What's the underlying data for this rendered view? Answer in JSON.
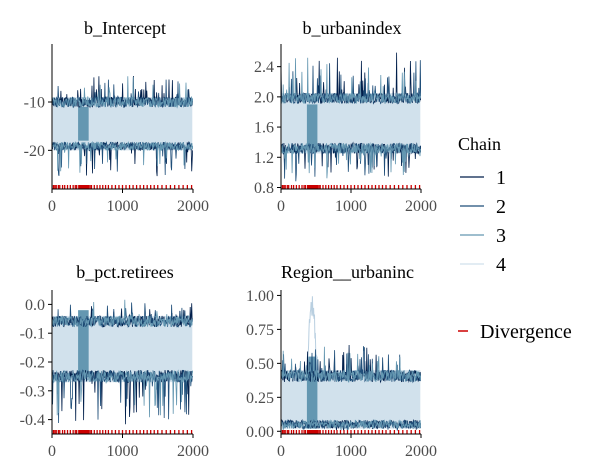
{
  "chart_data": [
    {
      "type": "line",
      "title": "b_Intercept",
      "xlim": [
        0,
        2000
      ],
      "ylim": [
        -28,
        2
      ],
      "x_ticks": [
        0,
        1000,
        2000
      ],
      "x_tick_labels": [
        "0",
        "1000",
        "2000"
      ],
      "y_ticks": [
        -10,
        -20
      ],
      "y_tick_labels": [
        "-10",
        "-20"
      ],
      "band": {
        "center": -15,
        "low": -20,
        "high": -9,
        "spike_low": -26,
        "spike_high": -4
      },
      "stuck_segment": {
        "x": [
          370,
          520
        ],
        "low": -18,
        "high": -11
      }
    },
    {
      "type": "line",
      "title": "b_urbanindex",
      "xlim": [
        0,
        2000
      ],
      "ylim": [
        0.78,
        2.7
      ],
      "x_ticks": [
        0,
        1000,
        2000
      ],
      "x_tick_labels": [
        "0",
        "1000",
        "2000"
      ],
      "y_ticks": [
        2.4,
        2.0,
        1.6,
        1.2,
        0.8
      ],
      "y_tick_labels": [
        "2.4",
        "2.0",
        "1.6",
        "1.2",
        "0.8"
      ],
      "band": {
        "center": 1.65,
        "low": 1.25,
        "high": 2.05,
        "spike_low": 0.85,
        "spike_high": 2.6
      },
      "stuck_segment": {
        "x": [
          370,
          520
        ],
        "low": 1.3,
        "high": 1.9
      }
    },
    {
      "type": "line",
      "title": "b_pct.retirees",
      "xlim": [
        0,
        2000
      ],
      "ylim": [
        -0.45,
        0.05
      ],
      "x_ticks": [
        0,
        1000,
        2000
      ],
      "x_tick_labels": [
        "0",
        "1000",
        "2000"
      ],
      "y_ticks": [
        0.0,
        -0.1,
        -0.2,
        -0.3,
        -0.4
      ],
      "y_tick_labels": [
        "0.0",
        "-0.1",
        "-0.2",
        "-0.3",
        "-0.4"
      ],
      "band": {
        "center": -0.15,
        "low": -0.27,
        "high": -0.04,
        "spike_low": -0.42,
        "spike_high": 0.02
      },
      "stuck_segment": {
        "x": [
          370,
          520
        ],
        "low": -0.25,
        "high": -0.02
      }
    },
    {
      "type": "line",
      "title": "Region__urbaninc",
      "xlim": [
        0,
        2000
      ],
      "ylim": [
        -0.02,
        1.04
      ],
      "x_ticks": [
        0,
        1000,
        2000
      ],
      "x_tick_labels": [
        "0",
        "1000",
        "2000"
      ],
      "y_ticks": [
        1.0,
        0.75,
        0.5,
        0.25,
        0.0
      ],
      "y_tick_labels": [
        "1.00",
        "0.75",
        "0.50",
        "0.25",
        "0.00"
      ],
      "band": {
        "center": 0.2,
        "low": 0.02,
        "high": 0.45,
        "spike_low": 0.0,
        "spike_high": 0.65
      },
      "stuck_segment": {
        "x": [
          370,
          520
        ],
        "low": 0.02,
        "high": 0.55
      },
      "excursion": {
        "x": [
          370,
          520
        ],
        "peak": 1.0
      }
    }
  ],
  "divergence_x": [
    20,
    40,
    60,
    90,
    110,
    150,
    180,
    220,
    260,
    300,
    330,
    350,
    380,
    390,
    400,
    410,
    420,
    430,
    440,
    450,
    460,
    470,
    480,
    490,
    500,
    510,
    520,
    540,
    560,
    600,
    640,
    680,
    720,
    760,
    800,
    850,
    900,
    950,
    1000,
    1050,
    1100,
    1150,
    1200,
    1250,
    1300,
    1350,
    1400,
    1450,
    1500,
    1560,
    1620,
    1680,
    1740,
    1800,
    1860,
    1920,
    1980
  ],
  "legend": {
    "title": "Chain",
    "chains": [
      {
        "label": "1",
        "color": "#011f4b"
      },
      {
        "label": "2",
        "color": "#1f4e79"
      },
      {
        "label": "3",
        "color": "#6497b1"
      },
      {
        "label": "4",
        "color": "#d1e1ec"
      }
    ],
    "divergence_label": "Divergence",
    "divergence_color": "#cc0000"
  },
  "colors": {
    "band_fill": "#d1e1ec",
    "stuck_fill": "#6497b1",
    "axis": "#000000"
  }
}
